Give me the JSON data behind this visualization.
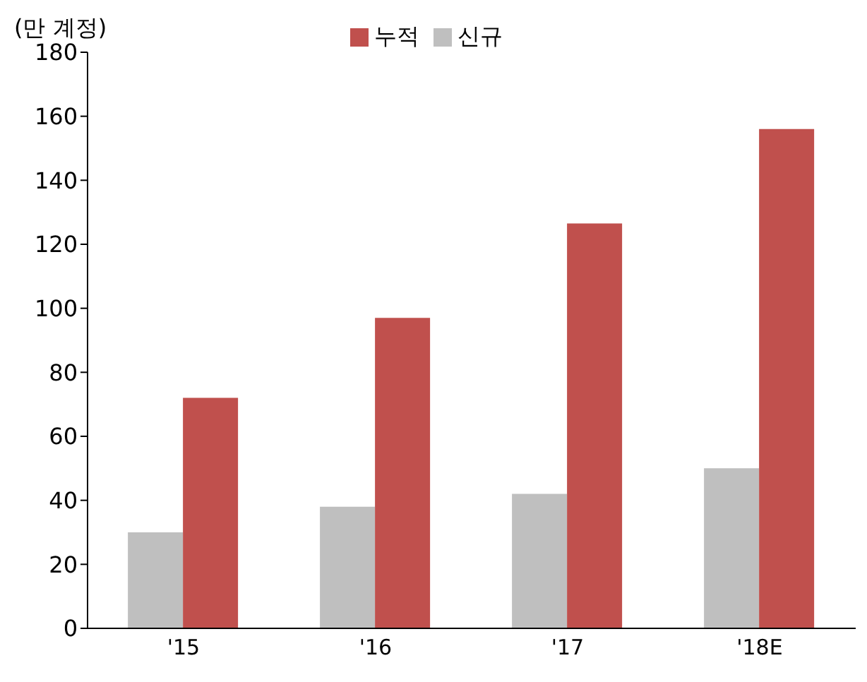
{
  "chart_data": {
    "type": "bar",
    "ylabel": "(만 계정)",
    "categories": [
      "'15",
      "'16",
      "'17",
      "'18E"
    ],
    "series": [
      {
        "name": "신규",
        "color": "#bfbfbf",
        "values": [
          30,
          38,
          42,
          50
        ]
      },
      {
        "name": "누적",
        "color": "#c0504d",
        "values": [
          72,
          97,
          126.5,
          156
        ]
      }
    ],
    "ylim": [
      0,
      180
    ],
    "yticks": [
      0,
      20,
      40,
      60,
      80,
      100,
      120,
      140,
      160,
      180
    ],
    "grid": false,
    "legend": "top"
  }
}
